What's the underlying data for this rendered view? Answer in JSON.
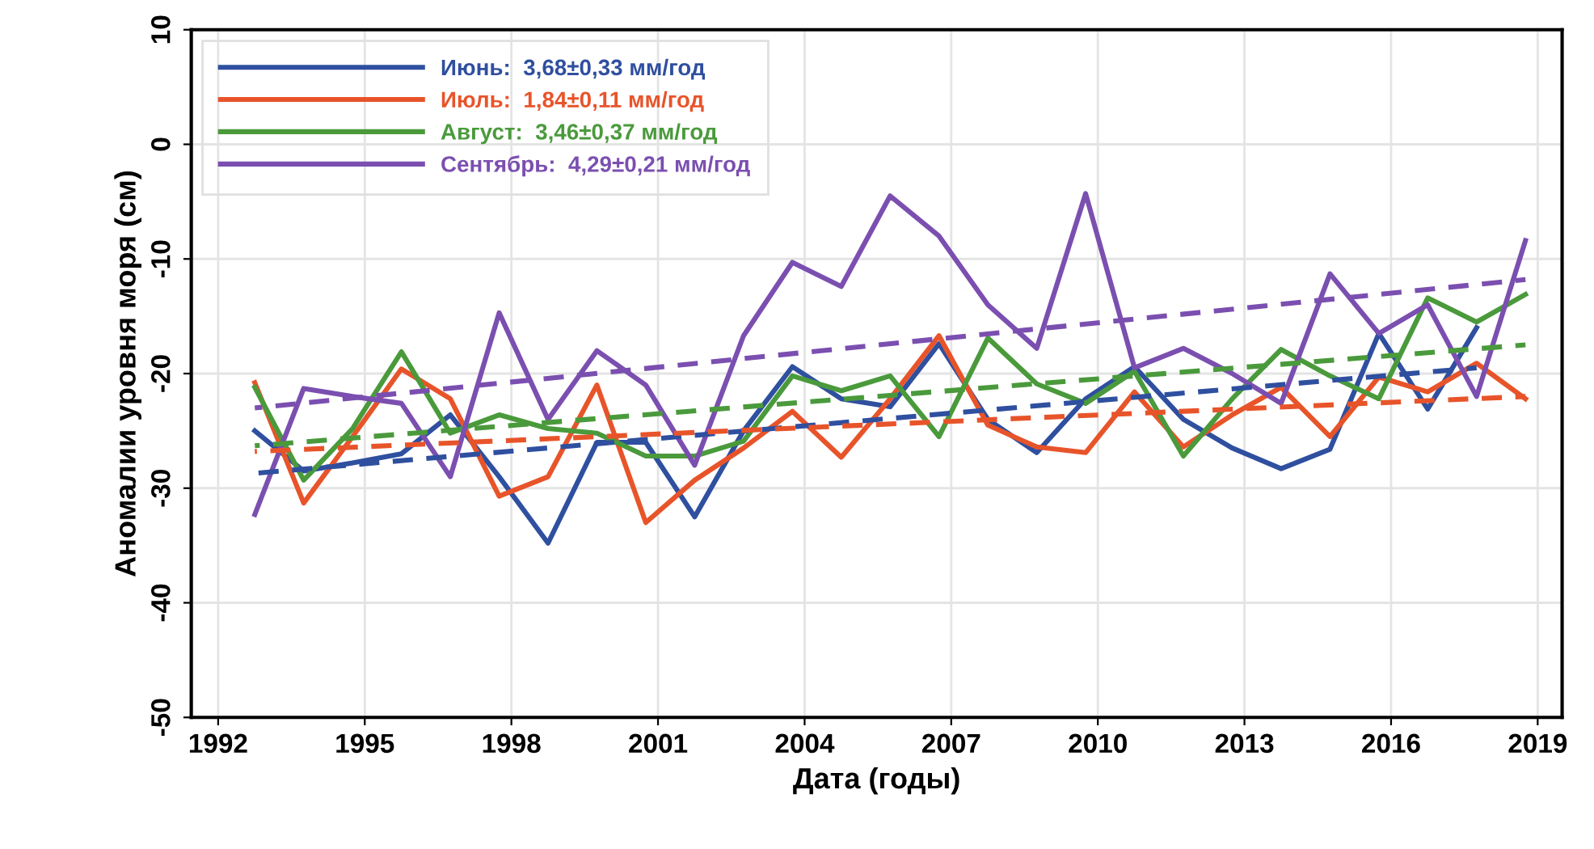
{
  "chart_data": {
    "type": "line",
    "xlabel": "Дата (годы)",
    "ylabel": "Аномалии уровня моря (см)",
    "xlim": [
      1991.45,
      2019.5
    ],
    "xticks": [
      1992,
      1995,
      1998,
      2001,
      2004,
      2007,
      2010,
      2013,
      2016,
      2019
    ],
    "ylim": [
      -50,
      10
    ],
    "yticks": [
      -50,
      -40,
      -30,
      -20,
      -10,
      0,
      10
    ],
    "grid": true,
    "legend": "top left",
    "line_style": "solid",
    "marker": "none",
    "x": [
      1992.75,
      1993.75,
      1994.75,
      1995.75,
      1996.75,
      1997.75,
      1998.75,
      1999.75,
      2000.75,
      2001.75,
      2002.75,
      2003.75,
      2004.75,
      2005.75,
      2006.75,
      2007.75,
      2008.75,
      2009.75,
      2010.75,
      2011.75,
      2012.75,
      2013.75,
      2014.75,
      2015.75,
      2016.75,
      2017.75,
      2018.75
    ],
    "series": [
      {
        "name": "Июнь:  3,68±0,33 мм/год",
        "color": "#2f4f9f",
        "values": [
          -25,
          -28.5,
          -27.8,
          -27,
          -23.6,
          -29,
          -34.8,
          -26,
          -26,
          -32.5,
          -25,
          -19.4,
          -22.2,
          -22.9,
          -17.4,
          -24,
          -26.9,
          -22.2,
          -19.4,
          -24,
          -26.5,
          -28.3,
          -26.6,
          -16.5,
          -23.1,
          -16,
          null
        ]
      },
      {
        "name": "Июль:  1,84±0,11 мм/год",
        "color": "#e8542a",
        "values": [
          -20.8,
          -31.3,
          -25.5,
          -19.6,
          -22.2,
          -30.7,
          -29,
          -21,
          -33,
          -29.3,
          -26.5,
          -23.3,
          -27.3,
          -22.2,
          -16.7,
          -24.5,
          -26.4,
          -26.9,
          -21.6,
          -26.4,
          -23.6,
          -21.2,
          -25.5,
          -20.3,
          -21.6,
          -19.1,
          -22.2
        ]
      },
      {
        "name": "Август:  3,46±0,37 мм/год",
        "color": "#4a9a3c",
        "values": [
          -21.2,
          -29.3,
          -24.8,
          -18.1,
          -25.2,
          -23.6,
          -24.8,
          -25.2,
          -27.2,
          -27.2,
          -25.9,
          -20.2,
          -21.5,
          -20.2,
          -25.5,
          -16.9,
          -20.9,
          -22.6,
          -19.8,
          -27.2,
          -22.2,
          -17.9,
          -20.2,
          -22.2,
          -13.4,
          -15.5,
          -13.1
        ]
      },
      {
        "name": "Сентябрь:  4,29±0,21 мм/год",
        "color": "#7b4fb0",
        "values": [
          -32.3,
          -21.3,
          -22,
          -22.6,
          -29,
          -14.7,
          -24,
          -18,
          -21,
          -28,
          -16.7,
          -10.3,
          -12.4,
          -4.5,
          -8,
          -14,
          -17.8,
          -4.3,
          -19.5,
          -17.8,
          -20,
          -22.6,
          -11.3,
          -16.5,
          -14,
          -22,
          -8.4
        ]
      },
      {
        "color": "#2f4f9f",
        "line_style": "dashed",
        "x": [
          1992.75,
          2017.75
        ],
        "values": [
          -28.7,
          -19.5
        ]
      },
      {
        "color": "#e8542a",
        "line_style": "dashed",
        "x": [
          1992.75,
          2018.75
        ],
        "values": [
          -26.8,
          -22
        ]
      },
      {
        "color": "#4a9a3c",
        "line_style": "dashed",
        "x": [
          1992.75,
          2018.75
        ],
        "values": [
          -26.3,
          -17.5
        ]
      },
      {
        "color": "#7b4fb0",
        "line_style": "dashed",
        "x": [
          1992.75,
          2018.75
        ],
        "values": [
          -23,
          -11.8
        ]
      }
    ]
  }
}
